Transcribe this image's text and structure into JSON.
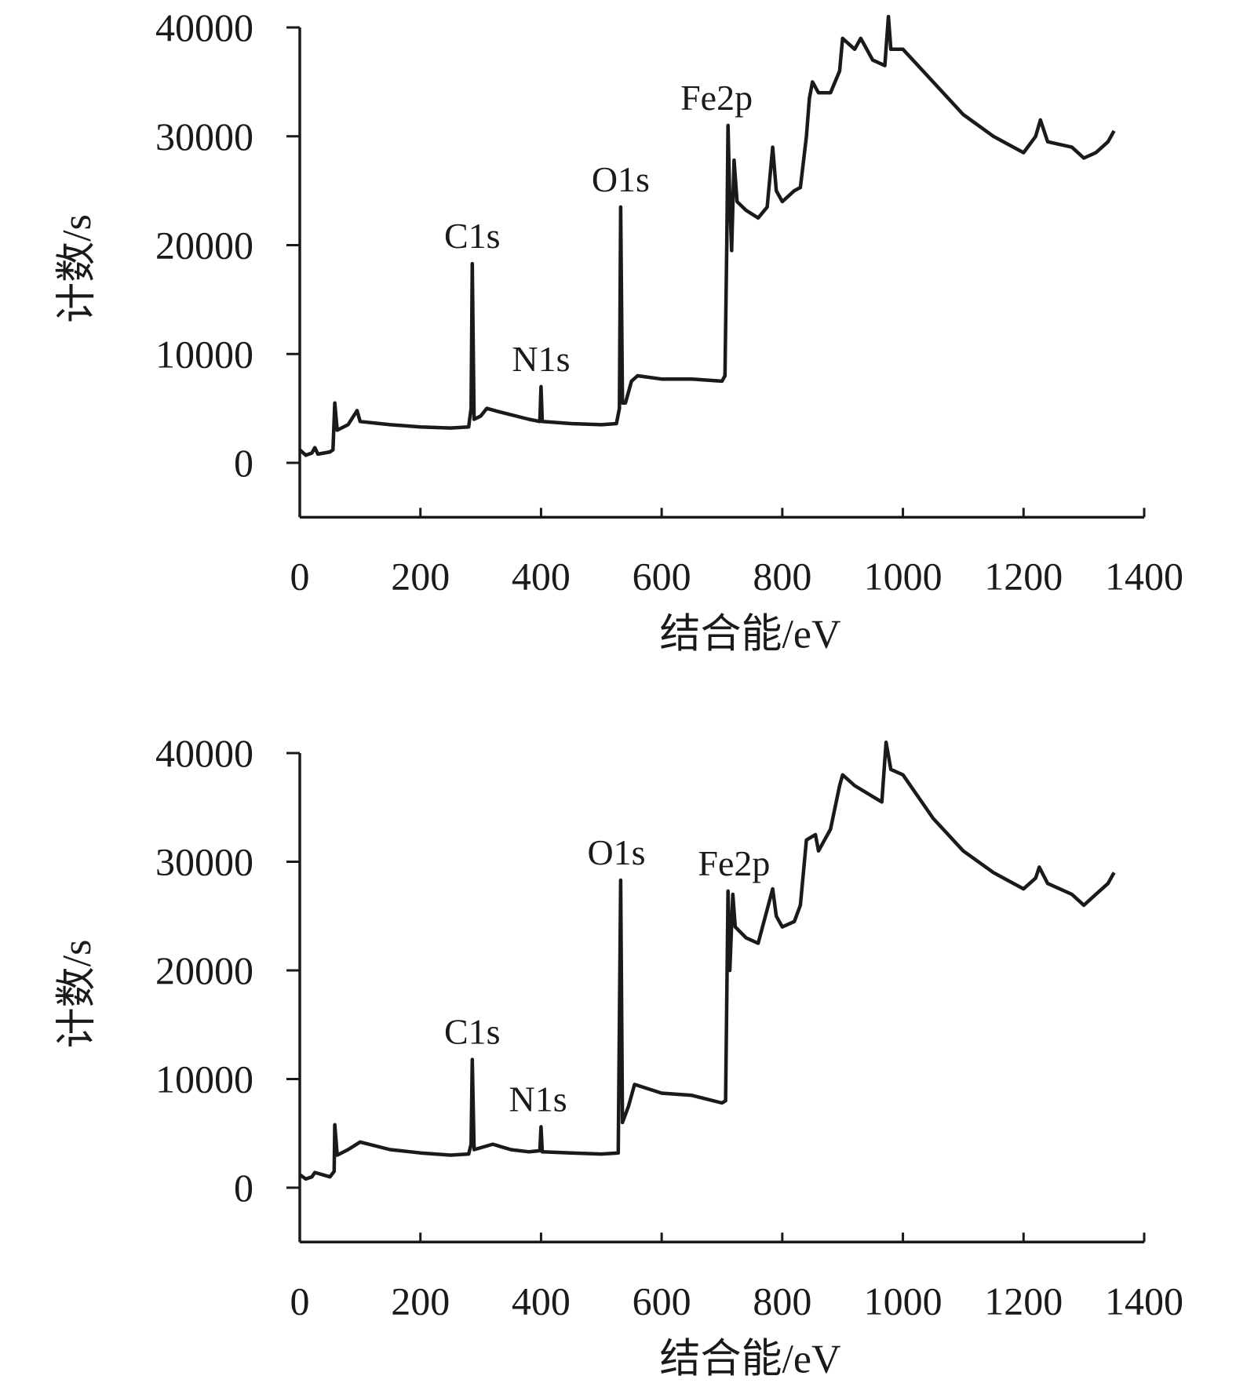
{
  "chart_data": [
    {
      "type": "line",
      "xlabel": "结合能/eV",
      "ylabel": "计数/s",
      "xlim": [
        0,
        1400
      ],
      "ylim": [
        -5000,
        40000
      ],
      "xticks": [
        0,
        200,
        400,
        600,
        800,
        1000,
        1200,
        1400
      ],
      "yticks": [
        0,
        10000,
        20000,
        30000,
        40000
      ],
      "color": "#1a1a1a",
      "x": [
        0,
        10,
        20,
        25,
        30,
        50,
        55,
        58,
        62,
        80,
        95,
        100,
        150,
        200,
        250,
        280,
        284,
        286,
        289,
        300,
        310,
        330,
        380,
        398,
        400,
        402,
        450,
        500,
        525,
        530,
        532,
        535,
        540,
        550,
        560,
        600,
        650,
        700,
        705,
        708,
        710,
        713,
        716,
        720,
        725,
        740,
        760,
        775,
        784,
        790,
        800,
        820,
        830,
        840,
        845,
        850,
        860,
        880,
        895,
        900,
        920,
        930,
        950,
        970,
        976,
        980,
        1000,
        1050,
        1100,
        1150,
        1200,
        1220,
        1228,
        1240,
        1280,
        1300,
        1320,
        1340,
        1350
      ],
      "values": [
        1200,
        700,
        900,
        1400,
        800,
        1000,
        1200,
        5500,
        3000,
        3500,
        4800,
        3800,
        3500,
        3300,
        3200,
        3300,
        5000,
        18300,
        4000,
        4300,
        5000,
        4700,
        4000,
        3800,
        7000,
        3800,
        3600,
        3500,
        3600,
        5000,
        23500,
        5500,
        5500,
        7500,
        8000,
        7700,
        7700,
        7500,
        8000,
        20000,
        31000,
        24000,
        19500,
        27800,
        24000,
        23200,
        22500,
        23500,
        29000,
        25000,
        24000,
        25000,
        25300,
        30000,
        33500,
        35000,
        34000,
        34000,
        36000,
        39000,
        38000,
        39000,
        37000,
        36500,
        41000,
        38000,
        38000,
        35000,
        32000,
        30000,
        28500,
        30000,
        31500,
        29500,
        29000,
        28000,
        28500,
        29500,
        30500
      ],
      "annotations": [
        {
          "text": "C1s",
          "x": 286
        },
        {
          "text": "N1s",
          "x": 400
        },
        {
          "text": "O1s",
          "x": 532
        },
        {
          "text": "Fe2p",
          "x": 691
        }
      ]
    },
    {
      "type": "line",
      "xlabel": "结合能/eV",
      "ylabel": "计数/s",
      "xlim": [
        0,
        1400
      ],
      "ylim": [
        -5000,
        40000
      ],
      "xticks": [
        0,
        200,
        400,
        600,
        800,
        1000,
        1200,
        1400
      ],
      "yticks": [
        0,
        10000,
        20000,
        30000,
        40000
      ],
      "color": "#1a1a1a",
      "x": [
        0,
        10,
        20,
        25,
        50,
        57,
        58,
        62,
        80,
        100,
        150,
        200,
        250,
        280,
        284,
        286,
        289,
        320,
        350,
        380,
        398,
        400,
        402,
        450,
        500,
        528,
        532,
        535,
        545,
        555,
        600,
        650,
        700,
        706,
        710,
        713,
        718,
        722,
        740,
        760,
        784,
        790,
        800,
        820,
        830,
        840,
        855,
        860,
        880,
        895,
        900,
        920,
        950,
        965,
        972,
        980,
        1000,
        1050,
        1100,
        1150,
        1200,
        1220,
        1226,
        1240,
        1280,
        1300,
        1320,
        1340,
        1350
      ],
      "values": [
        1200,
        800,
        1000,
        1400,
        1000,
        1500,
        5800,
        3000,
        3500,
        4200,
        3500,
        3200,
        3000,
        3100,
        4000,
        11800,
        3500,
        4000,
        3500,
        3300,
        3400,
        5600,
        3300,
        3200,
        3100,
        3200,
        28300,
        6000,
        7500,
        9500,
        8700,
        8500,
        7800,
        8000,
        27300,
        20000,
        27000,
        24000,
        23000,
        22500,
        27500,
        25000,
        24000,
        24500,
        26000,
        32000,
        32500,
        31000,
        33000,
        37000,
        38000,
        37000,
        36000,
        35500,
        41000,
        38500,
        38000,
        34000,
        31000,
        29000,
        27500,
        28500,
        29500,
        28000,
        27000,
        26000,
        27000,
        28000,
        29000
      ],
      "annotations": [
        {
          "text": "C1s",
          "x": 286
        },
        {
          "text": "N1s",
          "x": 395
        },
        {
          "text": "O1s",
          "x": 525
        },
        {
          "text": "Fe2p",
          "x": 720
        }
      ]
    }
  ]
}
